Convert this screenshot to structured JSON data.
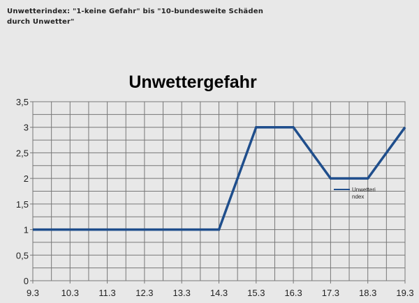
{
  "note": "Unwetterindex: \"1-keine Gefahr\" bis \"10-bundesweite Schäden durch Unwetter\"",
  "chart_data": {
    "type": "line",
    "title": "Unwettergefahr",
    "categories": [
      "9.3",
      "10.3",
      "11.3",
      "12.3",
      "13.3",
      "14.3",
      "15.3",
      "16.3",
      "17.3",
      "18.3",
      "19.3"
    ],
    "series": [
      {
        "name": "Unwetteri ndex",
        "values": [
          1,
          1,
          1,
          1,
          1,
          1,
          3,
          3,
          2,
          2,
          3
        ],
        "color": "#1f4e8c"
      }
    ],
    "yticks": [
      "0",
      "0,5",
      "1",
      "1,5",
      "2",
      "2,5",
      "3",
      "3,5"
    ],
    "ylim": [
      0,
      3.5
    ],
    "grid": true,
    "legend": "right, inside plot",
    "background": "#e8e8e8"
  }
}
